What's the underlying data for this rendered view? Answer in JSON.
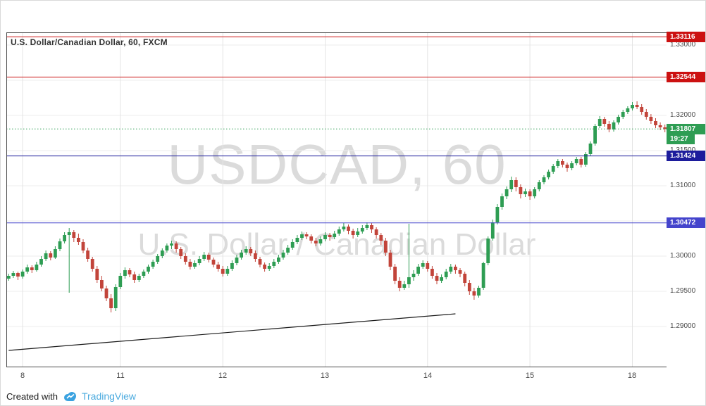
{
  "header": {
    "title": "U.S. Dollar/Canadian Dollar, 60, FXCM"
  },
  "watermark": {
    "line1": "USDCAD, 60",
    "line2": "U.S. Dollar / Canadian Dollar"
  },
  "footer": {
    "created_with": "Created with",
    "brand": "TradingView"
  },
  "chart_data": {
    "type": "candlestick",
    "symbol": "USDCAD",
    "interval": "60",
    "exchange": "FXCM",
    "title": "U.S. Dollar/Canadian Dollar, 60, FXCM",
    "colors": {
      "up": "#2e9d53",
      "down": "#c2443a",
      "grid": "#ececec",
      "day_grid": "#e4e4e4",
      "frame": "#4a4a4a",
      "axis_text": "#4a4a4a",
      "trendline": "#1a1a1a",
      "red_level": "#cc1111",
      "navy_level": "#1c1c9c",
      "blue_level": "#4444cc",
      "current_price": "#2e9d53",
      "brand_blue": "#3aa2e0"
    },
    "y_axis": {
      "top_price": 1.3318,
      "bottom_price": 1.2842,
      "gridlines": [
        1.33,
        1.325,
        1.32,
        1.315,
        1.31,
        1.305,
        1.3,
        1.295,
        1.29
      ],
      "labels": [
        {
          "text": "1.33000",
          "price": 1.33
        },
        {
          "text": "1.32000",
          "price": 1.32
        },
        {
          "text": "1.31500",
          "price": 1.315
        },
        {
          "text": "1.31000",
          "price": 1.31
        },
        {
          "text": "1.30000",
          "price": 1.3
        },
        {
          "text": "1.29500",
          "price": 1.295
        },
        {
          "text": "1.29000",
          "price": 1.29
        }
      ]
    },
    "x_labels": [
      {
        "text": "8",
        "index": 3
      },
      {
        "text": "11",
        "index": 24
      },
      {
        "text": "12",
        "index": 46
      },
      {
        "text": "13",
        "index": 68
      },
      {
        "text": "14",
        "index": 90
      },
      {
        "text": "15",
        "index": 112
      },
      {
        "text": "18",
        "index": 134
      }
    ],
    "levels": [
      {
        "label": "1.33116",
        "price": 1.33116,
        "color": "#cc1111",
        "style": "solid"
      },
      {
        "label": "1.32544",
        "price": 1.32544,
        "color": "#cc1111",
        "style": "solid"
      },
      {
        "label": "1.31807",
        "price": 1.31807,
        "color": "#2e9d53",
        "style": "dotted",
        "countdown": "19:27"
      },
      {
        "label": "1.31424",
        "price": 1.31424,
        "color": "#1c1c9c",
        "style": "solid"
      },
      {
        "label": "1.30472",
        "price": 1.30472,
        "color": "#4444cc",
        "style": "solid"
      }
    ],
    "trendline": {
      "from": {
        "index": 0,
        "price": 1.2866
      },
      "to": {
        "index": 96,
        "price": 1.2918
      }
    },
    "candles": [
      [
        1.2968,
        1.2975,
        1.2965,
        1.2972
      ],
      [
        1.2972,
        1.2979,
        1.2969,
        1.2976
      ],
      [
        1.2976,
        1.2978,
        1.2966,
        1.2971
      ],
      [
        1.2971,
        1.2981,
        1.2968,
        1.2978
      ],
      [
        1.2978,
        1.2988,
        1.2975,
        1.2984
      ],
      [
        1.2984,
        1.2987,
        1.2976,
        1.298
      ],
      [
        1.298,
        1.2992,
        1.2978,
        1.2988
      ],
      [
        1.2988,
        1.3,
        1.2985,
        1.2996
      ],
      [
        1.2996,
        1.3008,
        1.2993,
        1.3004
      ],
      [
        1.3004,
        1.3007,
        1.2994,
        1.2998
      ],
      [
        1.2998,
        1.3014,
        1.2996,
        1.301
      ],
      [
        1.301,
        1.3025,
        1.3007,
        1.3021
      ],
      [
        1.3021,
        1.3034,
        1.3018,
        1.303
      ],
      [
        1.303,
        1.304,
        1.2948,
        1.3034
      ],
      [
        1.3034,
        1.3037,
        1.302,
        1.3026
      ],
      [
        1.3026,
        1.3032,
        1.3016,
        1.302
      ],
      [
        1.302,
        1.3024,
        1.3004,
        1.3008
      ],
      [
        1.3008,
        1.3012,
        1.2992,
        1.2996
      ],
      [
        1.2996,
        1.2999,
        1.2978,
        1.2982
      ],
      [
        1.2982,
        1.2986,
        1.2962,
        1.2966
      ],
      [
        1.2966,
        1.2972,
        1.295,
        1.2954
      ],
      [
        1.2954,
        1.2958,
        1.2936,
        1.294
      ],
      [
        1.294,
        1.2946,
        1.292,
        1.2926
      ],
      [
        1.2926,
        1.296,
        1.2922,
        1.2956
      ],
      [
        1.2956,
        1.2976,
        1.2953,
        1.2972
      ],
      [
        1.2972,
        1.2984,
        1.2968,
        1.298
      ],
      [
        1.298,
        1.2983,
        1.297,
        1.2974
      ],
      [
        1.2974,
        1.2978,
        1.2962,
        1.2966
      ],
      [
        1.2966,
        1.2975,
        1.2963,
        1.2972
      ],
      [
        1.2972,
        1.2981,
        1.2969,
        1.2978
      ],
      [
        1.2978,
        1.2988,
        1.2975,
        1.2985
      ],
      [
        1.2985,
        1.2995,
        1.2982,
        1.2992
      ],
      [
        1.2992,
        1.3003,
        1.2989,
        1.3
      ],
      [
        1.3,
        1.3011,
        1.2997,
        1.3008
      ],
      [
        1.3008,
        1.3018,
        1.3005,
        1.3015
      ],
      [
        1.3015,
        1.3022,
        1.301,
        1.3018
      ],
      [
        1.3018,
        1.3021,
        1.3005,
        1.301
      ],
      [
        1.301,
        1.3013,
        1.2996,
        1.3
      ],
      [
        1.3,
        1.3004,
        1.2988,
        1.2992
      ],
      [
        1.2992,
        1.2996,
        1.2981,
        1.2985
      ],
      [
        1.2985,
        1.2994,
        1.2982,
        1.299
      ],
      [
        1.299,
        1.3,
        1.2987,
        1.2996
      ],
      [
        1.2996,
        1.3006,
        1.2993,
        1.3002
      ],
      [
        1.3002,
        1.3005,
        1.2991,
        1.2995
      ],
      [
        1.2995,
        1.2998,
        1.2984,
        1.2988
      ],
      [
        1.2988,
        1.2992,
        1.2978,
        1.2982
      ],
      [
        1.2982,
        1.2986,
        1.2971,
        1.2975
      ],
      [
        1.2975,
        1.2986,
        1.2972,
        1.2982
      ],
      [
        1.2982,
        1.2994,
        1.2979,
        1.299
      ],
      [
        1.299,
        1.3002,
        1.2987,
        1.2998
      ],
      [
        1.2998,
        1.3009,
        1.2995,
        1.3005
      ],
      [
        1.3005,
        1.3014,
        1.3002,
        1.301
      ],
      [
        1.301,
        1.3013,
        1.3,
        1.3004
      ],
      [
        1.3004,
        1.3008,
        1.2992,
        1.2996
      ],
      [
        1.2996,
        1.2999,
        1.2984,
        1.2988
      ],
      [
        1.2988,
        1.2991,
        1.2978,
        1.2982
      ],
      [
        1.2982,
        1.299,
        1.2979,
        1.2986
      ],
      [
        1.2986,
        1.2996,
        1.2983,
        1.2992
      ],
      [
        1.2992,
        1.3002,
        1.2989,
        1.2998
      ],
      [
        1.2998,
        1.3009,
        1.2995,
        1.3005
      ],
      [
        1.3005,
        1.3016,
        1.3002,
        1.3012
      ],
      [
        1.3012,
        1.3024,
        1.3009,
        1.302
      ],
      [
        1.302,
        1.303,
        1.3017,
        1.3026
      ],
      [
        1.3026,
        1.3035,
        1.3023,
        1.3031
      ],
      [
        1.3031,
        1.3034,
        1.3024,
        1.3028
      ],
      [
        1.3028,
        1.3031,
        1.3018,
        1.3022
      ],
      [
        1.3022,
        1.3026,
        1.3014,
        1.3018
      ],
      [
        1.3018,
        1.3028,
        1.3015,
        1.3024
      ],
      [
        1.3024,
        1.3034,
        1.3021,
        1.303
      ],
      [
        1.303,
        1.3033,
        1.3022,
        1.3027
      ],
      [
        1.3027,
        1.3036,
        1.3024,
        1.3032
      ],
      [
        1.3032,
        1.3042,
        1.3029,
        1.3038
      ],
      [
        1.3038,
        1.3047,
        1.3035,
        1.3042
      ],
      [
        1.3042,
        1.3045,
        1.3031,
        1.3036
      ],
      [
        1.3036,
        1.3039,
        1.3025,
        1.303
      ],
      [
        1.303,
        1.304,
        1.3027,
        1.3035
      ],
      [
        1.3035,
        1.3044,
        1.3032,
        1.304
      ],
      [
        1.304,
        1.3048,
        1.3037,
        1.3044
      ],
      [
        1.3044,
        1.3047,
        1.3033,
        1.3038
      ],
      [
        1.3038,
        1.3041,
        1.3025,
        1.303
      ],
      [
        1.303,
        1.3033,
        1.3016,
        1.3022
      ],
      [
        1.3022,
        1.3026,
        1.3,
        1.3005
      ],
      [
        1.3005,
        1.3009,
        1.298,
        1.2985
      ],
      [
        1.2985,
        1.2989,
        1.296,
        1.2965
      ],
      [
        1.2965,
        1.297,
        1.295,
        1.2955
      ],
      [
        1.2955,
        1.2965,
        1.2952,
        1.296
      ],
      [
        1.296,
        1.3046,
        1.2955,
        1.297
      ],
      [
        1.297,
        1.298,
        1.2965,
        1.2975
      ],
      [
        1.2975,
        1.2989,
        1.2972,
        1.2985
      ],
      [
        1.2985,
        1.2994,
        1.2982,
        1.299
      ],
      [
        1.299,
        1.2993,
        1.2978,
        1.2982
      ],
      [
        1.2982,
        1.2986,
        1.2968,
        1.2972
      ],
      [
        1.2972,
        1.2976,
        1.296,
        1.2965
      ],
      [
        1.2965,
        1.2974,
        1.2962,
        1.297
      ],
      [
        1.297,
        1.2982,
        1.2967,
        1.2978
      ],
      [
        1.2978,
        1.2989,
        1.2975,
        1.2985
      ],
      [
        1.2985,
        1.2988,
        1.2975,
        1.298
      ],
      [
        1.298,
        1.2983,
        1.297,
        1.2975
      ],
      [
        1.2975,
        1.2978,
        1.2957,
        1.2962
      ],
      [
        1.2962,
        1.2966,
        1.2945,
        1.295
      ],
      [
        1.295,
        1.2955,
        1.2938,
        1.2944
      ],
      [
        1.2944,
        1.2958,
        1.2941,
        1.2955
      ],
      [
        1.2955,
        1.2992,
        1.2952,
        1.299
      ],
      [
        1.299,
        1.3028,
        1.2987,
        1.3025
      ],
      [
        1.3025,
        1.3052,
        1.3022,
        1.3048
      ],
      [
        1.3048,
        1.3074,
        1.3045,
        1.307
      ],
      [
        1.307,
        1.3089,
        1.3066,
        1.3085
      ],
      [
        1.3085,
        1.3099,
        1.3081,
        1.3095
      ],
      [
        1.3095,
        1.3113,
        1.3091,
        1.3108
      ],
      [
        1.3108,
        1.3112,
        1.3092,
        1.3098
      ],
      [
        1.3098,
        1.3102,
        1.3082,
        1.3088
      ],
      [
        1.3088,
        1.3096,
        1.3084,
        1.3092
      ],
      [
        1.3092,
        1.3095,
        1.308,
        1.3085
      ],
      [
        1.3085,
        1.3098,
        1.3082,
        1.3095
      ],
      [
        1.3095,
        1.3108,
        1.3092,
        1.3105
      ],
      [
        1.3105,
        1.3115,
        1.3102,
        1.3112
      ],
      [
        1.3112,
        1.3123,
        1.3109,
        1.312
      ],
      [
        1.312,
        1.3131,
        1.3117,
        1.3128
      ],
      [
        1.3128,
        1.3138,
        1.3125,
        1.3135
      ],
      [
        1.3135,
        1.3138,
        1.3126,
        1.313
      ],
      [
        1.313,
        1.3133,
        1.312,
        1.3125
      ],
      [
        1.3125,
        1.3135,
        1.3122,
        1.3132
      ],
      [
        1.3132,
        1.3141,
        1.3129,
        1.3138
      ],
      [
        1.3138,
        1.3141,
        1.3126,
        1.313
      ],
      [
        1.313,
        1.3148,
        1.3127,
        1.3145
      ],
      [
        1.3145,
        1.3163,
        1.3142,
        1.316
      ],
      [
        1.316,
        1.3188,
        1.3157,
        1.3185
      ],
      [
        1.3185,
        1.3199,
        1.3182,
        1.3195
      ],
      [
        1.3195,
        1.3198,
        1.3184,
        1.3188
      ],
      [
        1.3188,
        1.3192,
        1.3176,
        1.318
      ],
      [
        1.318,
        1.3193,
        1.3177,
        1.319
      ],
      [
        1.319,
        1.3201,
        1.3187,
        1.3198
      ],
      [
        1.3198,
        1.3208,
        1.3195,
        1.3205
      ],
      [
        1.3205,
        1.3213,
        1.3202,
        1.321
      ],
      [
        1.321,
        1.3219,
        1.3207,
        1.3215
      ],
      [
        1.3215,
        1.322,
        1.3209,
        1.3212
      ],
      [
        1.3212,
        1.3216,
        1.3201,
        1.3205
      ],
      [
        1.3205,
        1.3209,
        1.3194,
        1.3198
      ],
      [
        1.3198,
        1.3202,
        1.3188,
        1.3192
      ],
      [
        1.3192,
        1.3196,
        1.3182,
        1.3186
      ],
      [
        1.3186,
        1.319,
        1.3179,
        1.3183
      ],
      [
        1.3183,
        1.3187,
        1.3176,
        1.31807
      ]
    ]
  }
}
